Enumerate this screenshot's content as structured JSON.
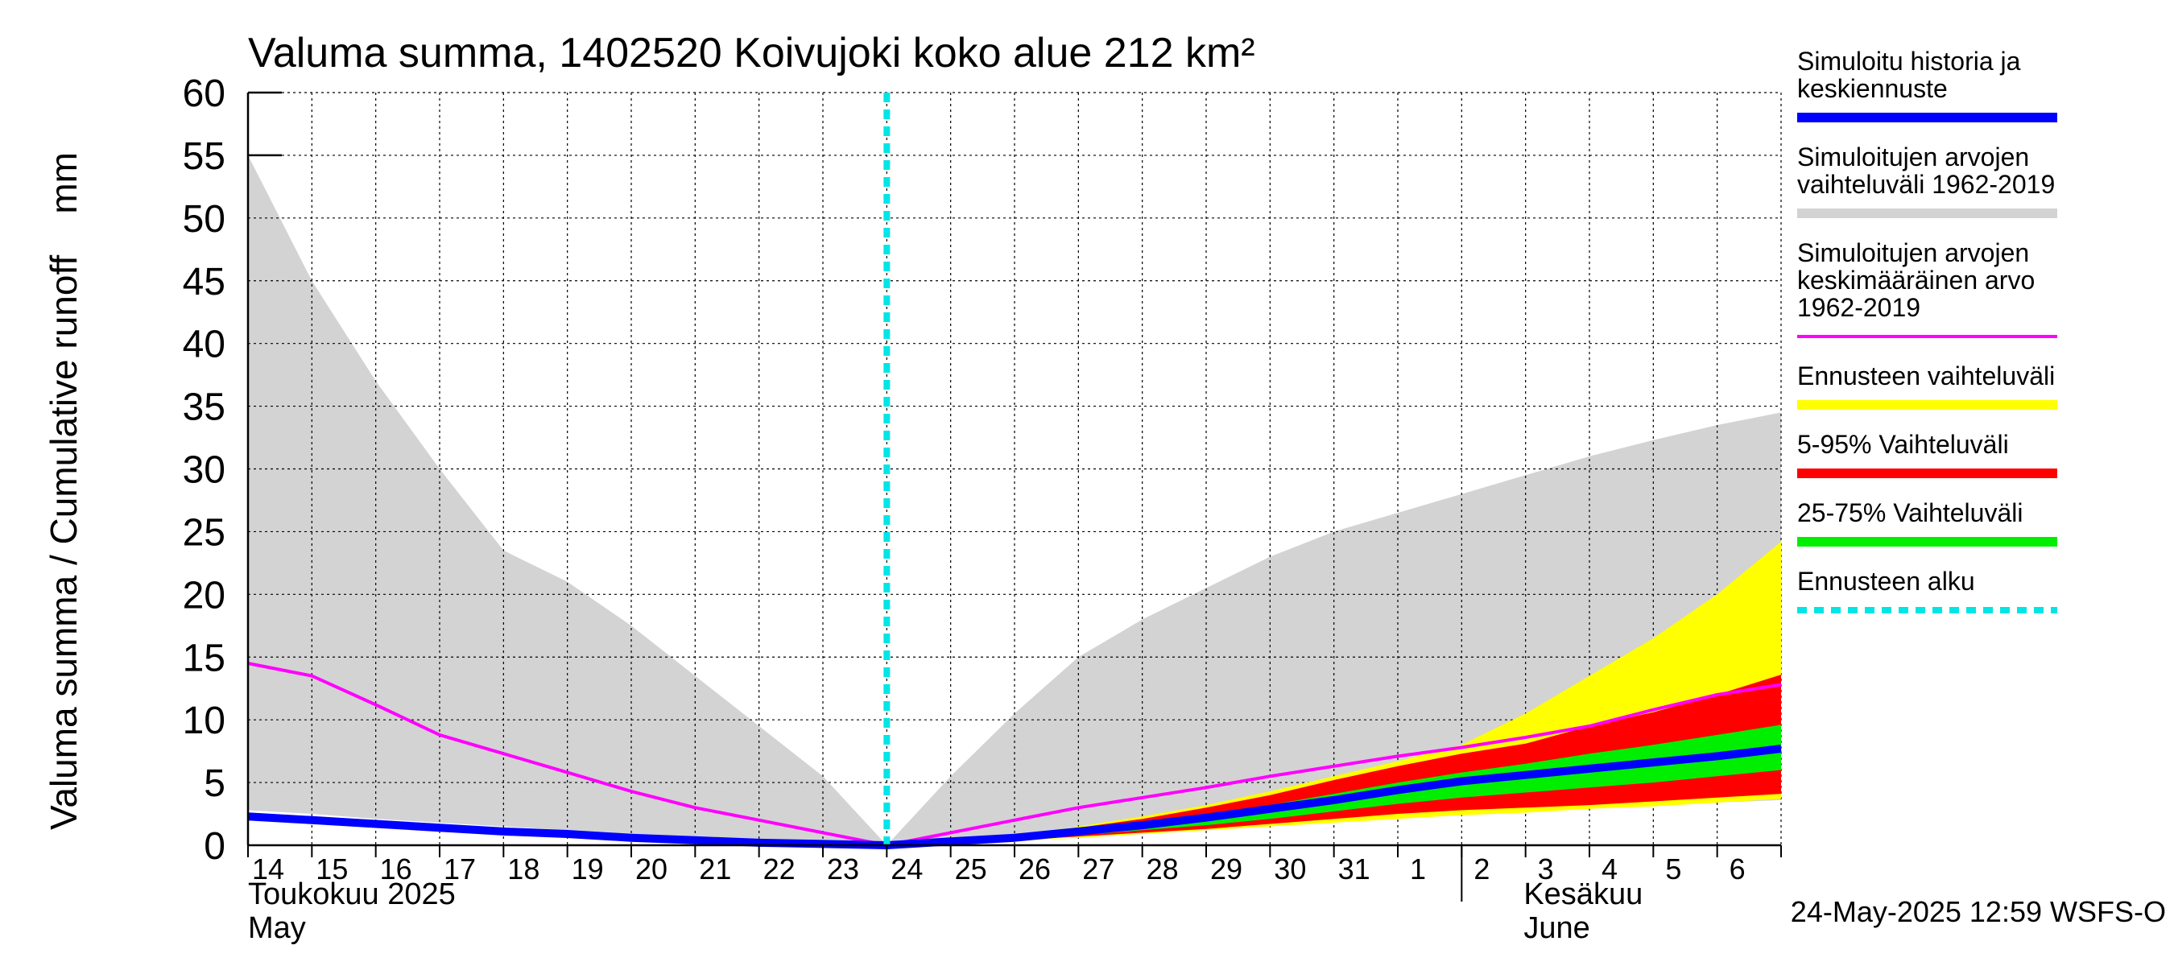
{
  "chart_data": {
    "type": "area",
    "title": "Valuma summa, 1402520 Koivujoki koko alue 212 km²",
    "ylabel": "Valuma summa / Cumulative runoff    mm",
    "ylim": [
      0,
      60
    ],
    "yticks": [
      0,
      5,
      10,
      15,
      20,
      25,
      30,
      35,
      40,
      45,
      50,
      55,
      60
    ],
    "x_start_day": 0,
    "x_end_day": 24,
    "x_tick_labels": [
      "14",
      "15",
      "16",
      "17",
      "18",
      "19",
      "20",
      "21",
      "22",
      "23",
      "24",
      "25",
      "26",
      "27",
      "28",
      "29",
      "30",
      "31",
      "1",
      "2",
      "3",
      "4",
      "5",
      "6"
    ],
    "month_labels": [
      {
        "fi": "Toukokuu  2025",
        "en": "May",
        "day": 0
      },
      {
        "fi": "Kesäkuu",
        "en": "June",
        "day": 19
      }
    ],
    "forecast_start_day": 10,
    "grid": true,
    "legend_placement": "right",
    "footer": "24-May-2025 12:59 WSFS-O",
    "series": [
      {
        "name": "Simuloitujen arvojen vaihteluväli 1962-2019",
        "role": "historical_range",
        "color": "#d3d3d3",
        "x": [
          0,
          1,
          2,
          3,
          4,
          5,
          6,
          7,
          8,
          9,
          10,
          11,
          12,
          13,
          14,
          15,
          16,
          17,
          18,
          19,
          20,
          21,
          22,
          23,
          24
        ],
        "upper": [
          55,
          45,
          37,
          30,
          23.5,
          21,
          17.5,
          13.5,
          9.5,
          5.5,
          0,
          5.5,
          10.5,
          15,
          18,
          20.5,
          23,
          25,
          26.5,
          28,
          29.5,
          31,
          32.3,
          33.5,
          34.5
        ],
        "lower": [
          2.8,
          2.5,
          2.1,
          1.8,
          1.5,
          1.2,
          0.9,
          0.6,
          0.3,
          0.1,
          0,
          0.2,
          0.5,
          0.8,
          1.1,
          1.4,
          1.7,
          2.0,
          2.3,
          2.6,
          2.8,
          3.0,
          3.2,
          3.4,
          3.6
        ]
      },
      {
        "name": "Ennusteen vaihteluväli",
        "role": "forecast_range",
        "color": "#ffff00",
        "x": [
          10,
          11,
          12,
          13,
          14,
          15,
          16,
          17,
          18,
          19,
          20,
          21,
          22,
          23,
          24
        ],
        "upper": [
          0,
          0.3,
          0.7,
          1.5,
          2.3,
          3.2,
          4.3,
          5.5,
          6.7,
          8.0,
          10.5,
          13.5,
          16.5,
          20.0,
          24.2
        ],
        "lower": [
          0,
          0.2,
          0.4,
          0.6,
          0.9,
          1.2,
          1.5,
          1.8,
          2.1,
          2.4,
          2.6,
          2.9,
          3.1,
          3.4,
          3.7
        ]
      },
      {
        "name": "5-95% Vaihteluväli",
        "role": "p5_p95",
        "color": "#ff0000",
        "x": [
          10,
          11,
          12,
          13,
          14,
          15,
          16,
          17,
          18,
          19,
          20,
          21,
          22,
          23,
          24
        ],
        "upper": [
          0,
          0.3,
          0.7,
          1.4,
          2.1,
          3.0,
          4.0,
          5.2,
          6.3,
          7.3,
          8.1,
          9.5,
          10.6,
          12.0,
          13.6
        ],
        "lower": [
          0,
          0.2,
          0.4,
          0.7,
          1.0,
          1.3,
          1.7,
          2.1,
          2.5,
          2.8,
          3.0,
          3.2,
          3.5,
          3.8,
          4.1
        ]
      },
      {
        "name": "25-75% Vaihteluväli",
        "role": "p25_p75",
        "color": "#00ee00",
        "x": [
          10,
          11,
          12,
          13,
          14,
          15,
          16,
          17,
          18,
          19,
          20,
          21,
          22,
          23,
          24
        ],
        "upper": [
          0,
          0.3,
          0.6,
          1.1,
          1.7,
          2.4,
          3.2,
          4.1,
          5.0,
          5.8,
          6.5,
          7.3,
          8.0,
          8.8,
          9.6
        ],
        "lower": [
          0,
          0.2,
          0.5,
          0.8,
          1.2,
          1.6,
          2.1,
          2.7,
          3.3,
          3.8,
          4.2,
          4.6,
          5.0,
          5.5,
          6.0
        ]
      },
      {
        "name": "Simuloitujen arvojen keskimääräinen arvo 1962-2019",
        "role": "historical_mean",
        "color": "#ff00ff",
        "x": [
          0,
          1,
          2,
          3,
          4,
          5,
          6,
          7,
          8,
          9,
          10,
          11,
          12,
          13,
          14,
          15,
          16,
          17,
          18,
          19,
          20,
          21,
          22,
          23,
          24
        ],
        "values": [
          14.5,
          13.5,
          11.2,
          8.8,
          7.3,
          5.8,
          4.3,
          3.0,
          2.0,
          1.0,
          0,
          1.0,
          2.0,
          3.0,
          3.8,
          4.6,
          5.5,
          6.3,
          7.1,
          7.8,
          8.6,
          9.5,
          10.8,
          12.0,
          12.8
        ]
      },
      {
        "name": "Simuloitu historia ja keskiennuste",
        "role": "history_median",
        "color": "#0000ff",
        "x": [
          0,
          1,
          2,
          3,
          4,
          5,
          6,
          7,
          8,
          9,
          10,
          11,
          12,
          13,
          14,
          15,
          16,
          17,
          18,
          19,
          20,
          21,
          22,
          23,
          24
        ],
        "values": [
          2.3,
          2.0,
          1.7,
          1.4,
          1.1,
          0.9,
          0.6,
          0.4,
          0.2,
          0.1,
          0,
          0.3,
          0.6,
          1.1,
          1.6,
          2.2,
          2.9,
          3.6,
          4.4,
          5.1,
          5.6,
          6.1,
          6.6,
          7.1,
          7.7
        ]
      }
    ]
  },
  "legend": [
    {
      "lines": [
        "Simuloitu historia ja",
        "keskiennuste"
      ],
      "color": "#0000ff",
      "style": "thick"
    },
    {
      "lines": [
        "Simuloitujen arvojen",
        "vaihteluväli 1962-2019"
      ],
      "color": "#d3d3d3",
      "style": "thick"
    },
    {
      "lines": [
        "Simuloitujen arvojen",
        "keskimääräinen arvo",
        "   1962-2019"
      ],
      "color": "#ff00ff",
      "style": "thin"
    },
    {
      "lines": [
        "Ennusteen vaihteluväli"
      ],
      "color": "#ffff00",
      "style": "thick"
    },
    {
      "lines": [
        "5-95% Vaihteluväli"
      ],
      "color": "#ff0000",
      "style": "thick"
    },
    {
      "lines": [
        "25-75% Vaihteluväli"
      ],
      "color": "#00ee00",
      "style": "thick"
    },
    {
      "lines": [
        "Ennusteen alku"
      ],
      "color": "#00e5e5",
      "style": "dashed"
    }
  ]
}
